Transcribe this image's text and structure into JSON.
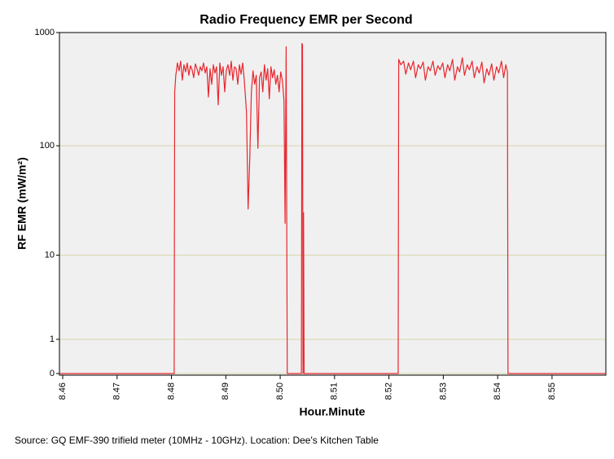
{
  "chart_data": {
    "type": "line",
    "title": "Radio Frequency EMR per Second",
    "x_label": "Hour.Minute",
    "y_label": "RF EMR (mW/m²)",
    "source": "Source: GQ EMF-390 trifield meter (10MHz - 10GHz). Location: Dee's Kitchen Table",
    "yscale": "log1p",
    "grid": true,
    "color": "#e8262e",
    "xlim": [
      8.4594,
      8.5599
    ],
    "ylim": [
      0,
      1000
    ],
    "xticks": [
      8.46,
      8.47,
      8.48,
      8.49,
      {
        "value": 8.5,
        "label": "8.50"
      },
      8.51,
      8.52,
      8.53,
      8.54,
      8.55
    ],
    "yticks": [
      0,
      1,
      10,
      100,
      1000
    ],
    "x": [
      8.4594,
      8.4805,
      8.4806,
      8.4808,
      8.4811,
      8.4814,
      8.4817,
      8.482,
      8.4823,
      8.4826,
      8.4829,
      8.4832,
      8.4835,
      8.4838,
      8.4841,
      8.4844,
      8.4847,
      8.485,
      8.4853,
      8.4856,
      8.4859,
      8.4862,
      8.4865,
      8.4868,
      8.4871,
      8.4874,
      8.4877,
      8.488,
      8.4883,
      8.4886,
      8.4889,
      8.4892,
      8.4895,
      8.4898,
      8.4901,
      8.4904,
      8.4907,
      8.491,
      8.4913,
      8.4916,
      8.4919,
      8.4922,
      8.4925,
      8.4928,
      8.4931,
      8.4934,
      8.4938,
      8.4941,
      8.4944,
      8.4947,
      8.495,
      8.4953,
      8.4956,
      8.4959,
      8.4962,
      8.4965,
      8.4968,
      8.4971,
      8.4974,
      8.4977,
      8.498,
      8.4983,
      8.4986,
      8.4989,
      8.4992,
      8.4995,
      8.4998,
      8.5001,
      8.5004,
      8.5007,
      8.5009,
      8.5011,
      8.5013,
      8.5039,
      8.504,
      8.5041,
      8.5042,
      8.5043,
      8.5044,
      8.5217,
      8.5218,
      8.5222,
      8.5227,
      8.5231,
      8.5236,
      8.524,
      8.5245,
      8.5249,
      8.5254,
      8.5258,
      8.5263,
      8.5267,
      8.5272,
      8.5276,
      8.5281,
      8.5285,
      8.529,
      8.5294,
      8.5299,
      8.5303,
      8.5308,
      8.5312,
      8.5317,
      8.5321,
      8.5326,
      8.533,
      8.5335,
      8.5339,
      8.5344,
      8.5348,
      8.5353,
      8.5357,
      8.5362,
      8.5366,
      8.5371,
      8.5375,
      8.538,
      8.5384,
      8.5389,
      8.5393,
      8.5398,
      8.5402,
      8.5407,
      8.5411,
      8.5415,
      8.5418,
      8.5419,
      8.5599
    ],
    "values": [
      0,
      0,
      300,
      420,
      540,
      460,
      560,
      380,
      520,
      450,
      540,
      420,
      510,
      470,
      400,
      530,
      480,
      420,
      500,
      460,
      540,
      440,
      500,
      270,
      480,
      350,
      520,
      440,
      500,
      230,
      540,
      420,
      500,
      300,
      470,
      520,
      420,
      560,
      380,
      500,
      480,
      350,
      520,
      430,
      540,
      380,
      200,
      27,
      75,
      300,
      460,
      350,
      420,
      95,
      400,
      450,
      300,
      520,
      380,
      480,
      260,
      500,
      400,
      470,
      350,
      420,
      300,
      450,
      380,
      250,
      20,
      750,
      0,
      0,
      800,
      780,
      0,
      25,
      0,
      0,
      580,
      520,
      560,
      430,
      540,
      470,
      560,
      400,
      520,
      480,
      550,
      380,
      500,
      460,
      560,
      420,
      510,
      470,
      540,
      400,
      520,
      460,
      580,
      380,
      500,
      450,
      600,
      420,
      520,
      470,
      560,
      400,
      500,
      440,
      550,
      360,
      480,
      420,
      530,
      380,
      500,
      440,
      560,
      400,
      520,
      450,
      0,
      0
    ]
  }
}
